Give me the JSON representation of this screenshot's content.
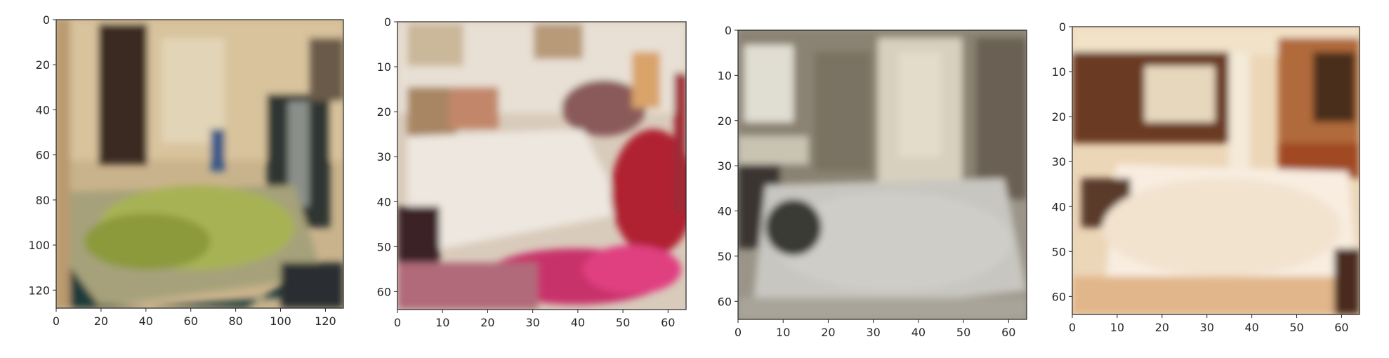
{
  "panels": [
    {
      "id": "panel-1",
      "description": "blurry generated bedroom, large bed with greenish-yellow blanket, dark left wall art, window at right",
      "scene": "bed-green",
      "x_ticks": [
        "0",
        "20",
        "40",
        "60",
        "80",
        "100",
        "120"
      ],
      "y_ticks": [
        "0",
        "20",
        "40",
        "60",
        "80",
        "100",
        "120"
      ],
      "xlim": [
        0,
        128
      ],
      "ylim": [
        128,
        0
      ]
    },
    {
      "id": "panel-2",
      "description": "blurry generated bedroom, white bed with ornate headboard and pink/red elements",
      "scene": "bed-white-pink",
      "x_ticks": [
        "0",
        "10",
        "20",
        "30",
        "40",
        "50",
        "60"
      ],
      "y_ticks": [
        "0",
        "10",
        "20",
        "30",
        "40",
        "50",
        "60"
      ],
      "xlim": [
        0,
        64
      ],
      "ylim": [
        64,
        0
      ]
    },
    {
      "id": "panel-3",
      "description": "blurry generated bedroom, pale grey bed, doorway and window in background",
      "scene": "bed-grey",
      "x_ticks": [
        "0",
        "10",
        "20",
        "30",
        "40",
        "50",
        "60"
      ],
      "y_ticks": [
        "0",
        "10",
        "20",
        "30",
        "40",
        "50",
        "60"
      ],
      "xlim": [
        0,
        64
      ],
      "ylim": [
        64,
        0
      ]
    },
    {
      "id": "panel-4",
      "description": "blurry generated bedroom, warm orange tones, white bed, dark wooden furniture",
      "scene": "bed-warm",
      "x_ticks": [
        "0",
        "10",
        "20",
        "30",
        "40",
        "50",
        "60"
      ],
      "y_ticks": [
        "0",
        "10",
        "20",
        "30",
        "40",
        "50",
        "60"
      ],
      "xlim": [
        0,
        64
      ],
      "ylim": [
        64,
        0
      ]
    }
  ],
  "colors": {
    "axis": "#262626",
    "text": "#262626",
    "background": "#ffffff"
  }
}
